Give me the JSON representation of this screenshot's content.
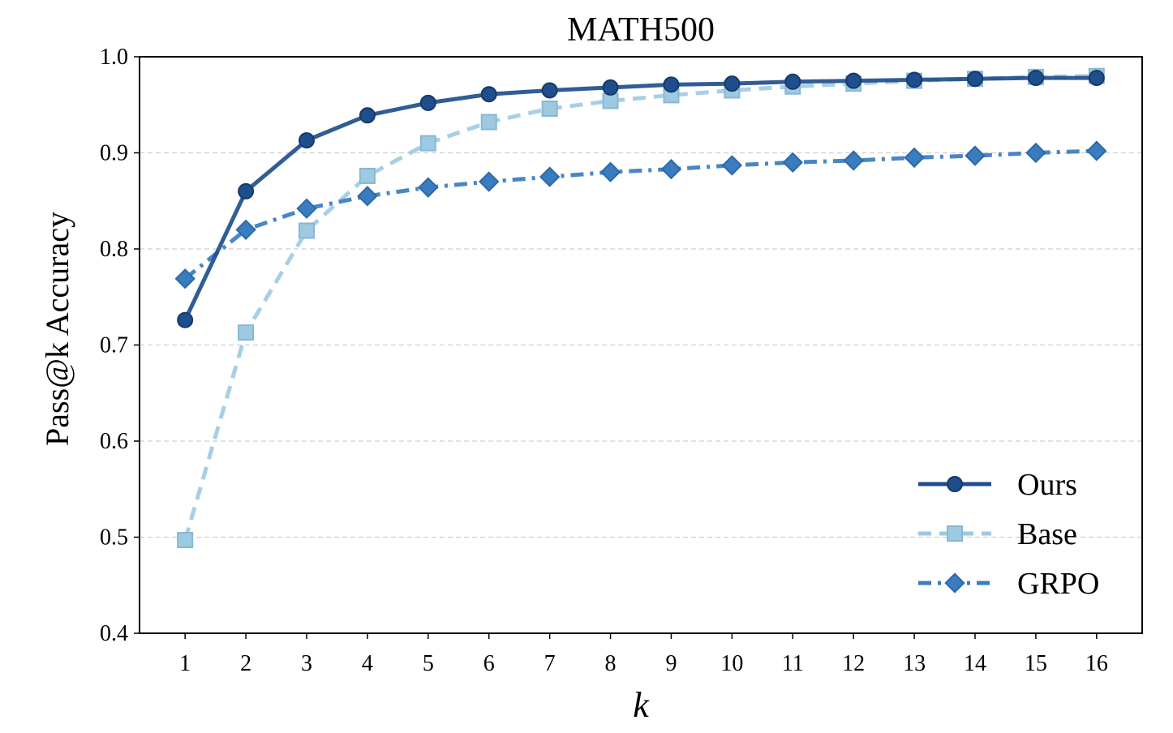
{
  "chart_data": {
    "type": "line",
    "title": "MATH500",
    "xlabel": "k",
    "ylabel": "Pass@k Accuracy",
    "x": [
      1,
      2,
      3,
      4,
      5,
      6,
      7,
      8,
      9,
      10,
      11,
      12,
      13,
      14,
      15,
      16
    ],
    "xlim": [
      0.25,
      16.75
    ],
    "ylim": [
      0.4,
      1.0
    ],
    "yticks": [
      0.4,
      0.5,
      0.6,
      0.7,
      0.8,
      0.9,
      1.0
    ],
    "ytick_labels": [
      "0.4",
      "0.5",
      "0.6",
      "0.7",
      "0.8",
      "0.9",
      "1.0"
    ],
    "grid": "horizontal dashed",
    "legend_position": "lower-right",
    "series": [
      {
        "name": "Ours",
        "color": "#1f4e8c",
        "line_style": "solid",
        "marker": "circle",
        "values": [
          0.726,
          0.86,
          0.913,
          0.939,
          0.952,
          0.961,
          0.965,
          0.968,
          0.971,
          0.972,
          0.974,
          0.975,
          0.976,
          0.977,
          0.978,
          0.978
        ]
      },
      {
        "name": "Base",
        "color": "#9ecae1",
        "line_style": "dashed",
        "marker": "square",
        "values": [
          0.497,
          0.713,
          0.819,
          0.876,
          0.91,
          0.932,
          0.946,
          0.954,
          0.96,
          0.965,
          0.969,
          0.972,
          0.975,
          0.977,
          0.979,
          0.98
        ]
      },
      {
        "name": "GRPO",
        "color": "#3a7cc0",
        "line_style": "dashdot",
        "marker": "diamond",
        "values": [
          0.769,
          0.82,
          0.842,
          0.855,
          0.864,
          0.87,
          0.875,
          0.88,
          0.883,
          0.887,
          0.89,
          0.892,
          0.895,
          0.897,
          0.9,
          0.902
        ]
      }
    ]
  }
}
